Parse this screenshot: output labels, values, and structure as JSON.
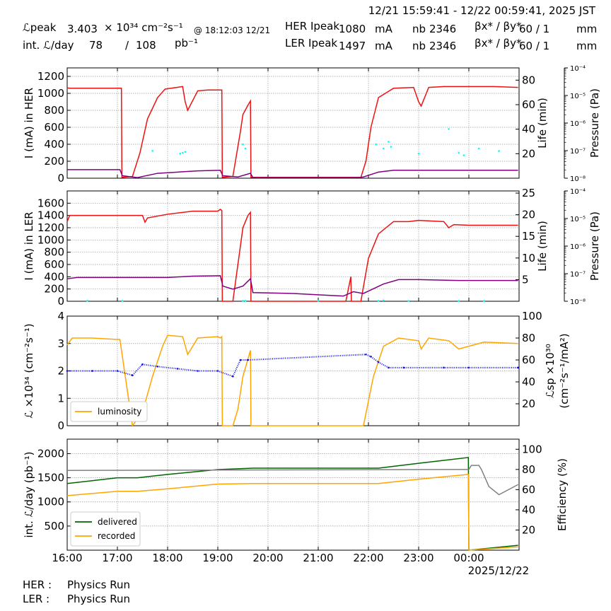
{
  "header": {
    "time_range": "12/21 15:59:41 - 12/22 00:59:41, 2025 JST",
    "lpeak_label": "ℒpeak",
    "lpeak_value": "3.403",
    "lpeak_unit": "× 10³⁴ cm⁻²s⁻¹",
    "lpeak_time": "@ 18:12:03 12/21",
    "intl_label": "int. ℒ/day",
    "intl_recorded": "78",
    "intl_slash": "/",
    "intl_delivered": "108",
    "intl_unit": "pb⁻¹",
    "her_label": "HER Ipeak",
    "her_value": "1080",
    "her_unit": "mA",
    "ler_label": "LER Ipeak",
    "ler_value": "1497",
    "ler_unit": "mA",
    "nb_label": "nb",
    "her_nb": "2346",
    "ler_nb": "2346",
    "beta_label": "βx* / βy*",
    "her_beta": "60 / 1",
    "ler_beta": "60 / 1",
    "beta_unit": "mm"
  },
  "footer": {
    "her_label": "HER :",
    "her_status": "Physics Run",
    "ler_label": "LER :",
    "ler_status": "Physics Run"
  },
  "colors": {
    "current": "#ee1111",
    "life": "#800080",
    "pressure": "#00ffff",
    "luminosity": "#ffa500",
    "specific": "#1010ee",
    "delivered": "#006400",
    "recorded": "#ffa500",
    "efficiency": "#808080"
  },
  "chart_data": [
    {
      "type": "line",
      "panel": "HER",
      "ylabel": "I (mA) in HER",
      "ylim": [
        0,
        1300
      ],
      "yticks": [
        0,
        200,
        400,
        600,
        800,
        1000,
        1200
      ],
      "y2label": "Life (min)",
      "y2lim": [
        0,
        90
      ],
      "y2ticks": [
        20,
        40,
        60,
        80
      ],
      "y3label": "Pressure (Pa)",
      "y3ticks": [
        "10⁻⁸",
        "10⁻⁷",
        "10⁻⁶",
        "10⁻⁵",
        "10⁻⁴"
      ],
      "xlim": [
        16.0,
        25.0
      ],
      "grid": true,
      "series": [
        {
          "key": "current",
          "x": [
            16.0,
            16.05,
            16.5,
            17.0,
            17.08,
            17.09,
            17.3,
            17.45,
            17.6,
            17.8,
            17.95,
            18.3,
            18.35,
            18.4,
            18.6,
            18.8,
            19.0,
            19.08,
            19.09,
            19.3,
            19.45,
            19.5,
            19.6,
            19.65,
            19.66,
            21.85,
            21.95,
            22.05,
            22.2,
            22.5,
            22.9,
            23.0,
            23.05,
            23.2,
            23.5,
            24.0,
            24.5,
            24.98
          ],
          "y": [
            1065,
            1060,
            1060,
            1060,
            1060,
            10,
            20,
            300,
            700,
            950,
            1050,
            1080,
            900,
            800,
            1030,
            1040,
            1040,
            1040,
            10,
            20,
            550,
            750,
            860,
            910,
            10,
            10,
            200,
            600,
            950,
            1060,
            1070,
            900,
            850,
            1070,
            1080,
            1080,
            1080,
            1070
          ]
        },
        {
          "key": "life",
          "x": [
            16.0,
            17.05,
            17.1,
            17.4,
            17.8,
            18.2,
            18.6,
            19.05,
            19.1,
            19.4,
            19.65,
            19.7,
            21.8,
            21.9,
            22.2,
            22.5,
            24.98
          ],
          "y": [
            7,
            7,
            2,
            0.5,
            4,
            5,
            6,
            6.5,
            2,
            1,
            4,
            0.5,
            0.5,
            1,
            5,
            6.5,
            6.5
          ]
        },
        {
          "key": "pressure",
          "x": [
            17.7,
            18.25,
            18.3,
            18.35,
            19.5,
            19.55,
            22.15,
            22.3,
            22.4,
            22.45,
            23.0,
            23.6,
            23.8,
            23.9,
            24.2,
            24.6
          ],
          "y": [
            322,
            290,
            300,
            310,
            400,
            350,
            400,
            350,
            430,
            370,
            290,
            580,
            300,
            270,
            350,
            320
          ]
        }
      ]
    },
    {
      "type": "line",
      "panel": "LER",
      "ylabel": "I (mA) in LER",
      "ylim": [
        0,
        1800
      ],
      "yticks": [
        0,
        200,
        400,
        600,
        800,
        1000,
        1200,
        1400,
        1600
      ],
      "y2label": "Life (min)",
      "y2lim": [
        0,
        25.5
      ],
      "y2ticks": [
        5,
        10,
        15,
        20,
        25
      ],
      "y3label": "Pressure (Pa)",
      "y3ticks": [
        "10⁻⁸",
        "10⁻⁷",
        "10⁻⁶",
        "10⁻⁵",
        "10⁻⁴"
      ],
      "xlim": [
        16.0,
        25.0
      ],
      "grid": true,
      "series": [
        {
          "key": "current",
          "x": [
            16.0,
            16.05,
            16.15,
            16.5,
            17.5,
            17.55,
            17.6,
            18.0,
            18.5,
            19.0,
            19.05,
            19.08,
            19.09,
            19.3,
            19.5,
            19.6,
            19.65,
            19.66,
            21.55,
            21.65,
            21.66,
            21.85,
            22.0,
            22.2,
            22.5,
            22.8,
            23.0,
            23.5,
            23.6,
            23.7,
            24.0,
            24.98
          ],
          "y": [
            1300,
            1400,
            1400,
            1400,
            1400,
            1290,
            1360,
            1420,
            1470,
            1470,
            1500,
            1480,
            0,
            0,
            1200,
            1400,
            1450,
            0,
            0,
            400,
            0,
            0,
            700,
            1100,
            1300,
            1300,
            1320,
            1300,
            1200,
            1250,
            1240,
            1240
          ]
        },
        {
          "key": "life",
          "x": [
            16.0,
            16.2,
            17.0,
            18.0,
            18.5,
            19.05,
            19.1,
            19.3,
            19.5,
            19.65,
            19.7,
            20.5,
            21.0,
            21.5,
            21.7,
            21.9,
            22.3,
            22.6,
            23.0,
            23.8,
            24.98
          ],
          "y": [
            5.2,
            5.5,
            5.5,
            5.5,
            5.8,
            5.9,
            3.5,
            2.8,
            3.5,
            5.2,
            2.0,
            1.8,
            1.5,
            1.2,
            2.2,
            1.8,
            4.0,
            5.0,
            5.0,
            4.8,
            4.8
          ]
        },
        {
          "key": "pressure",
          "x": [
            16.4,
            17.1,
            19.5,
            19.55,
            21.0,
            22.2,
            22.3,
            22.8,
            23.8,
            24.3
          ],
          "y": [
            8.0,
            6.5,
            6.5,
            6.2,
            5.2,
            7.0,
            14,
            5.5,
            5.0,
            5.5
          ]
        }
      ]
    },
    {
      "type": "line",
      "panel": "Luminosity",
      "ylabel": "ℒ ×10³⁴ (cm⁻²s⁻¹)",
      "ylim": [
        0,
        4
      ],
      "yticks": [
        0,
        1,
        2,
        3,
        4
      ],
      "y2label": "ℒsp ×10³⁰ (cm⁻²s⁻¹/mA²)",
      "y2lim": [
        0,
        100
      ],
      "y2ticks": [
        20,
        40,
        60,
        80,
        100
      ],
      "xlim": [
        16.0,
        25.0
      ],
      "grid": true,
      "legend": {
        "position": "lower-left",
        "entries": [
          "luminosity"
        ]
      },
      "series": [
        {
          "key": "luminosity",
          "name": "luminosity",
          "x": [
            16.0,
            16.1,
            16.5,
            17.0,
            17.05,
            17.3,
            17.5,
            17.7,
            17.9,
            18.0,
            18.3,
            18.4,
            18.6,
            19.0,
            19.05,
            19.08,
            19.09,
            19.3,
            19.4,
            19.5,
            19.65,
            19.66,
            21.9,
            22.1,
            22.3,
            22.6,
            23.0,
            23.05,
            23.2,
            23.6,
            23.8,
            24.3,
            24.98
          ],
          "y": [
            2.95,
            3.2,
            3.2,
            3.15,
            3.15,
            0,
            0.5,
            1.8,
            2.9,
            3.3,
            3.25,
            2.6,
            3.2,
            3.25,
            3.2,
            3.25,
            0,
            0,
            0.6,
            1.8,
            2.75,
            0,
            0,
            1.8,
            2.9,
            3.2,
            3.1,
            2.8,
            3.2,
            3.1,
            2.8,
            3.05,
            3.0
          ]
        },
        {
          "key": "specific",
          "name": "",
          "x": [
            16.0,
            16.5,
            17.0,
            17.3,
            17.5,
            17.8,
            18.2,
            18.6,
            19.0,
            19.3,
            19.45,
            19.6,
            21.95,
            22.05,
            22.2,
            22.4,
            22.7,
            23.5,
            24.0,
            24.98
          ],
          "y": [
            50,
            50,
            50,
            46,
            56,
            54,
            52,
            50,
            50,
            45,
            60,
            60,
            65,
            63,
            58,
            53,
            53,
            53,
            53,
            53
          ]
        }
      ]
    },
    {
      "type": "line",
      "panel": "Integrated",
      "ylabel": "int. ℒ/day (pb⁻¹)",
      "ylim": [
        0,
        2300
      ],
      "yticks": [
        500,
        1000,
        1500,
        2000
      ],
      "y2label": "Efficiency (%)",
      "y2lim": [
        0,
        110
      ],
      "y2ticks": [
        20,
        40,
        60,
        80,
        100
      ],
      "xlim": [
        16.0,
        25.0
      ],
      "xticks": [
        "16:00",
        "17:00",
        "18:00",
        "19:00",
        "20:00",
        "21:00",
        "22:00",
        "23:00",
        "00:00"
      ],
      "xdate": "2025/12/22",
      "grid": true,
      "legend": {
        "position": "lower-left",
        "entries": [
          "delivered",
          "recorded"
        ]
      },
      "series": [
        {
          "key": "delivered",
          "name": "delivered",
          "x": [
            16.0,
            17.0,
            17.4,
            18.0,
            19.0,
            19.7,
            21.9,
            22.2,
            23.0,
            23.99,
            24.0,
            24.98
          ],
          "y": [
            1380,
            1500,
            1500,
            1570,
            1670,
            1700,
            1700,
            1700,
            1800,
            1920,
            0,
            100
          ]
        },
        {
          "key": "recorded",
          "name": "recorded",
          "x": [
            16.0,
            17.0,
            17.4,
            18.0,
            19.0,
            19.7,
            21.9,
            22.2,
            23.0,
            23.99,
            24.0,
            24.98
          ],
          "y": [
            1130,
            1220,
            1220,
            1270,
            1370,
            1380,
            1380,
            1380,
            1470,
            1570,
            0,
            70
          ]
        },
        {
          "key": "efficiency",
          "name": "",
          "x": [
            16.0,
            24.0,
            24.05,
            24.2,
            24.25,
            24.4,
            24.6,
            24.98
          ],
          "y": [
            79,
            80,
            84,
            84,
            80,
            63,
            55,
            65
          ]
        }
      ]
    }
  ]
}
